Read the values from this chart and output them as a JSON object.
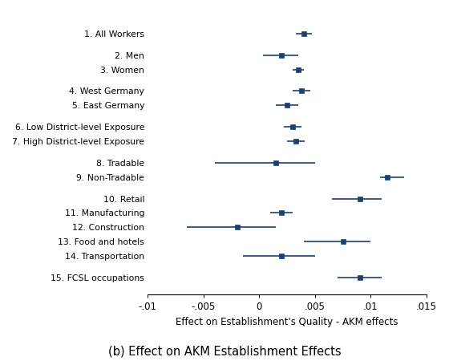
{
  "labels": [
    "1. All Workers",
    "2. Men",
    "3. Women",
    "4. West Germany",
    "5. East Germany",
    "6. Low District-level Exposure",
    "7. High District-level Exposure",
    "8. Tradable",
    "9. Non-Tradable",
    "10. Retail",
    "11. Manufacturing",
    "12. Construction",
    "13. Food and hotels",
    "14. Transportation",
    "15. FCSL occupations"
  ],
  "estimates": [
    0.004,
    0.002,
    0.0035,
    0.0038,
    0.0025,
    0.003,
    0.0033,
    0.0015,
    0.0115,
    0.009,
    0.002,
    -0.002,
    0.0075,
    0.002,
    0.009
  ],
  "ci_lower": [
    0.0033,
    0.0003,
    0.003,
    0.003,
    0.0015,
    0.0022,
    0.0025,
    -0.004,
    0.0108,
    0.0065,
    0.001,
    -0.0065,
    0.004,
    -0.0015,
    0.007
  ],
  "ci_upper": [
    0.0047,
    0.0035,
    0.004,
    0.0046,
    0.0035,
    0.0038,
    0.0041,
    0.005,
    0.013,
    0.011,
    0.003,
    0.0015,
    0.01,
    0.005,
    0.011
  ],
  "color": "#1e3f6e",
  "xlim": [
    -0.01,
    0.015
  ],
  "xticks": [
    -0.01,
    -0.005,
    0,
    0.005,
    0.01,
    0.015
  ],
  "xticklabels": [
    "-.01",
    "-.005",
    "0",
    ".005",
    ".01",
    ".015"
  ],
  "xlabel": "Effect on Establishment's Quality - AKM effects",
  "subtitle": "(b) Effect on AKM Establishment Effects",
  "y_positions": [
    16,
    14.5,
    13.5,
    12.0,
    11.0,
    9.5,
    8.5,
    7.0,
    6.0,
    4.5,
    3.5,
    2.5,
    1.5,
    0.5,
    -1.0
  ],
  "ylim": [
    -2.2,
    17.5
  ]
}
